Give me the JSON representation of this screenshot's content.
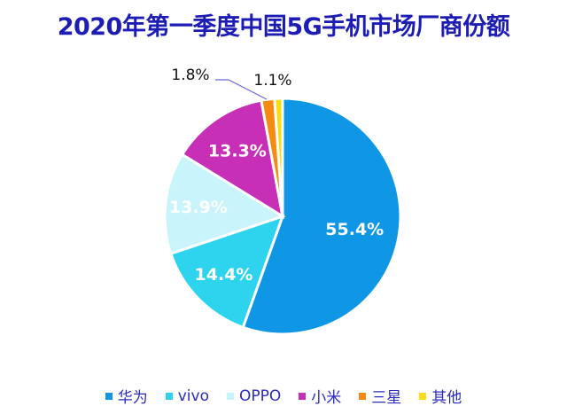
{
  "chart_data": {
    "type": "pie",
    "title": "2020年第一季度中国5G手机市场厂商份额",
    "start_angle_deg": 0,
    "direction": "clockwise",
    "slices": [
      {
        "label": "华为",
        "value": 55.4,
        "display": "55.4%",
        "color": "#0f97e6",
        "label_color": "#ffffff"
      },
      {
        "label": "vivo",
        "value": 14.4,
        "display": "14.4%",
        "color": "#2ed3ee",
        "label_color": "#ffffff"
      },
      {
        "label": "OPPO",
        "value": 13.9,
        "display": "13.9%",
        "color": "#c9f4fc",
        "label_color": "#ffffff"
      },
      {
        "label": "小米",
        "value": 13.3,
        "display": "13.3%",
        "color": "#c72fb6",
        "label_color": "#ffffff"
      },
      {
        "label": "三星",
        "value": 1.8,
        "display": "1.8%",
        "color": "#f78a10",
        "label_color": "#111111"
      },
      {
        "label": "其他",
        "value": 1.1,
        "display": "1.1%",
        "color": "#f9dc10",
        "label_color": "#111111"
      }
    ],
    "legend_position": "bottom",
    "unit": "%"
  },
  "title": "2020年第一季度中国5G手机市场厂商份额",
  "legend": [
    "华为",
    "vivo",
    "OPPO",
    "小米",
    "三星",
    "其他"
  ]
}
